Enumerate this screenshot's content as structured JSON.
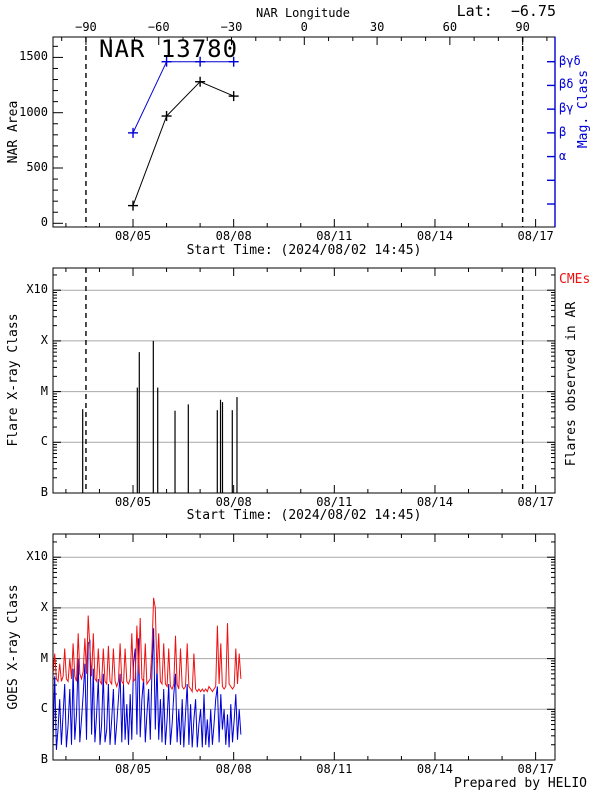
{
  "colors": {
    "blue": "#0000D6",
    "red": "#EE1111",
    "grid": "#A8A8A8",
    "axis": "#000000",
    "background": "#FFFFFF"
  },
  "chart_data": [
    {
      "panel": "nar-area-and-mag-class",
      "type": "line",
      "title": "NAR 13780",
      "lat": "Lat:  −6.75",
      "top_axis": {
        "title": "NAR Longitude",
        "tick_labels": [
          "−90",
          "−60",
          "−30",
          "0",
          "30",
          "60",
          "90"
        ],
        "tick_values": [
          -90,
          -60,
          -30,
          0,
          30,
          60,
          90
        ],
        "minor_step_deg": 10
      },
      "left_axis": {
        "title": "NAR Area",
        "tick_labels": [
          "0",
          "500",
          "1000",
          "1500"
        ],
        "tick_values": [
          0,
          500,
          1000,
          1500
        ],
        "minor_step": 100,
        "ylim": [
          0,
          1684
        ]
      },
      "right_axis": {
        "title": "Mag. Class",
        "tick_labels": [
          "βγδ",
          "βδ",
          "βγ",
          "β",
          "α"
        ],
        "num_ticks": 7
      },
      "x_axis": {
        "caption": "Start Time: (2024/08/02 14:45)",
        "tick_labels": [
          "08/05",
          "08/08",
          "08/11",
          "08/14",
          "08/17"
        ],
        "tick_days": [
          2.385,
          5.385,
          8.385,
          11.385,
          14.385
        ],
        "first_minor_day": 0.385,
        "minor_step_days": 1,
        "num_minor": 15
      },
      "limb_longitudes": [
        -90,
        90
      ],
      "series": [
        {
          "name": "nar-area",
          "color": "black",
          "marker": "plus",
          "points": [
            {
              "day": 2.385,
              "area": 160
            },
            {
              "day": 3.385,
              "area": 970
            },
            {
              "day": 4.385,
              "area": 1280
            },
            {
              "day": 5.385,
              "area": 1150
            }
          ]
        },
        {
          "name": "mag-class",
          "color": "blue",
          "marker": "plus",
          "points": [
            {
              "day": 2.385,
              "class": "β"
            },
            {
              "day": 3.385,
              "class": "βγδ"
            },
            {
              "day": 4.385,
              "class": "βγδ"
            },
            {
              "day": 5.385,
              "class": "βγδ"
            }
          ]
        }
      ]
    },
    {
      "panel": "flares-observed-in-ar",
      "type": "event-lines",
      "left_axis": {
        "title": "Flare X-ray Class",
        "tick_labels": [
          "B",
          "C",
          "M",
          "X",
          "X10"
        ]
      },
      "right_title": "Flares observed in AR",
      "cme_label": "CMEs",
      "x_axis": {
        "caption": "Start Time: (2024/08/02 14:45)",
        "tick_labels": [
          "08/05",
          "08/08",
          "08/11",
          "08/14",
          "08/17"
        ],
        "tick_days": [
          2.385,
          5.385,
          8.385,
          11.385,
          14.385
        ],
        "first_minor_day": 0.385,
        "minor_step_days": 1,
        "num_minor": 15
      },
      "limb_longitudes": [
        -90,
        90
      ],
      "flares": [
        {
          "day": 0.885,
          "class": "C4.5"
        },
        {
          "day": 2.513,
          "class": "M1.2"
        },
        {
          "day": 2.572,
          "class": "M6.0"
        },
        {
          "day": 2.99,
          "class": "X1.0"
        },
        {
          "day": 3.121,
          "class": "M1.2"
        },
        {
          "day": 3.637,
          "class": "C4.2"
        },
        {
          "day": 4.033,
          "class": "C5.6"
        },
        {
          "day": 4.897,
          "class": "C4.3"
        },
        {
          "day": 4.993,
          "class": "C6.9"
        },
        {
          "day": 5.052,
          "class": "C6.2"
        },
        {
          "day": 5.344,
          "class": "C4.3"
        },
        {
          "day": 5.484,
          "class": "C7.8"
        }
      ]
    },
    {
      "panel": "goes-xray-flux",
      "type": "line",
      "left_axis": {
        "title": "GOES X-ray Class",
        "tick_labels": [
          "B",
          "C",
          "M",
          "X",
          "X10"
        ]
      },
      "x_axis": {
        "tick_labels": [
          "08/05",
          "08/08",
          "08/11",
          "08/14",
          "08/17"
        ],
        "tick_days": [
          2.385,
          5.385,
          8.385,
          11.385,
          14.385
        ],
        "first_minor_day": 0.385,
        "minor_step_days": 1,
        "num_minor": 15
      },
      "footer": "Prepared by HELIO",
      "sample_step_days": 0.05,
      "units": "decades above B1 (0=B,1=C,2=M,3=X,4=X10)",
      "series": [
        {
          "name": "goes-long-channel",
          "color": "red",
          "values": [
            1.7,
            2.1,
            1.6,
            1.55,
            1.9,
            1.55,
            1.65,
            2.2,
            1.6,
            1.55,
            2.0,
            1.6,
            2.3,
            1.65,
            1.55,
            2.5,
            1.7,
            1.6,
            1.75,
            2.4,
            1.7,
            2.85,
            2.2,
            1.65,
            2.5,
            1.6,
            1.55,
            2.2,
            1.55,
            1.5,
            2.2,
            1.55,
            1.5,
            2.25,
            1.55,
            1.5,
            2.2,
            1.55,
            1.45,
            1.55,
            2.3,
            1.55,
            1.5,
            2.2,
            1.55,
            1.5,
            1.6,
            2.5,
            1.55,
            1.6,
            2.65,
            1.7,
            2.8,
            1.6,
            1.55,
            2.3,
            1.5,
            1.55,
            1.6,
            2.2,
            3.2,
            3.0,
            1.7,
            2.5,
            1.55,
            1.5,
            2.3,
            1.5,
            1.45,
            2.2,
            1.45,
            1.4,
            1.5,
            2.45,
            1.5,
            1.4,
            2.2,
            1.45,
            1.4,
            1.45,
            2.3,
            1.45,
            1.4,
            1.35,
            2.1,
            1.4,
            1.35,
            1.4,
            1.35,
            1.4,
            1.35,
            1.4,
            1.35,
            1.45,
            1.4,
            1.35,
            1.4,
            1.45,
            2.65,
            1.5,
            2.3,
            1.45,
            1.4,
            1.45,
            2.7,
            1.5,
            1.45,
            1.4,
            1.45,
            2.2,
            1.5,
            2.1,
            1.6
          ]
        },
        {
          "name": "goes-short-channel",
          "color": "blue",
          "values": [
            0.3,
            1.65,
            0.2,
            0.6,
            1.2,
            0.3,
            0.9,
            1.5,
            0.25,
            0.7,
            1.4,
            0.3,
            1.8,
            0.4,
            0.9,
            2.0,
            0.35,
            0.8,
            1.3,
            1.9,
            0.4,
            2.3,
            2.35,
            0.5,
            1.8,
            0.35,
            0.9,
            1.6,
            0.3,
            0.7,
            1.7,
            0.35,
            0.6,
            1.5,
            0.3,
            0.8,
            1.4,
            0.3,
            0.7,
            1.2,
            1.7,
            0.35,
            1.5,
            0.4,
            1.1,
            0.3,
            1.3,
            0.4,
            1.9,
            2.2,
            0.5,
            2.4,
            0.45,
            1.2,
            1.6,
            0.35,
            0.9,
            1.4,
            0.4,
            1.8,
            2.6,
            0.6,
            1.9,
            0.4,
            1.2,
            0.35,
            1.4,
            0.3,
            0.8,
            1.5,
            0.3,
            0.7,
            1.3,
            1.7,
            0.35,
            1.0,
            0.3,
            1.2,
            0.25,
            0.9,
            1.5,
            0.3,
            1.1,
            0.25,
            0.8,
            1.2,
            0.25,
            0.7,
            1.0,
            0.25,
            1.3,
            0.3,
            0.8,
            0.25,
            1.0,
            0.3,
            0.7,
            1.2,
            1.45,
            0.35,
            1.3,
            0.6,
            1.0,
            0.3,
            0.9,
            0.25,
            1.1,
            0.35,
            0.8,
            1.3,
            0.4,
            1.0,
            0.5
          ]
        }
      ]
    }
  ]
}
